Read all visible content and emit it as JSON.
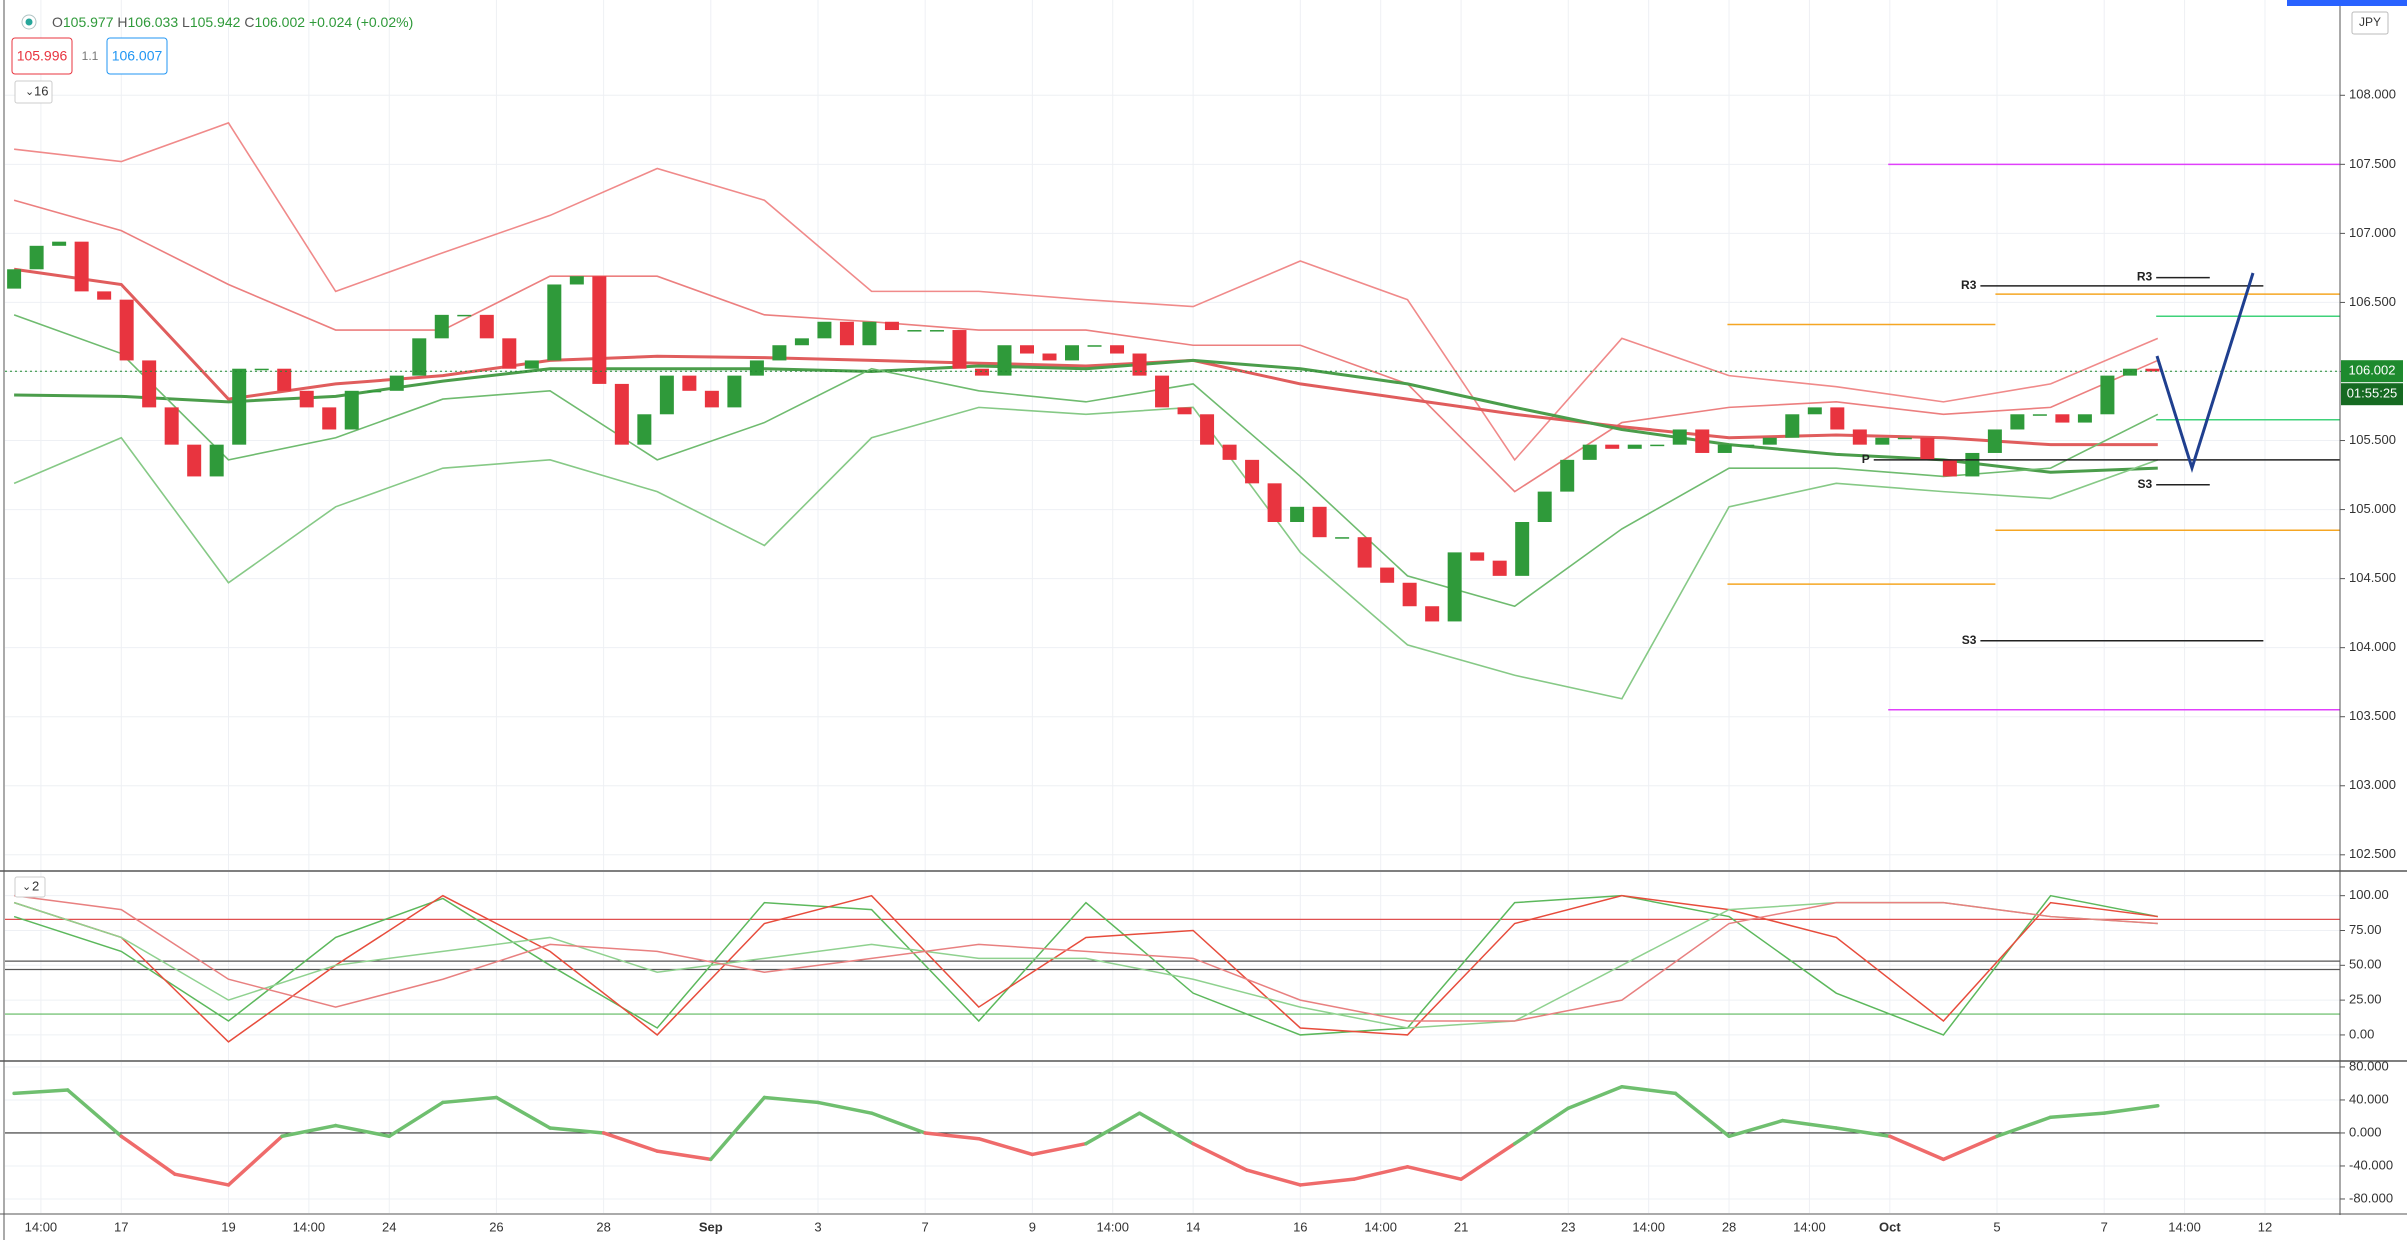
{
  "header": {
    "ohlc": [
      [
        "O",
        "105.977"
      ],
      [
        "H",
        "106.033"
      ],
      [
        "L",
        "105.942"
      ],
      [
        "C",
        "106.002"
      ]
    ],
    "change": "+0.024 (+0.02%)",
    "bid": "105.996",
    "spread": "1.1",
    "ask": "106.007",
    "main_toggle": "16",
    "osc_toggle": "2",
    "currency": "JPY"
  },
  "chart_data": [
    {
      "type": "candlestick",
      "xlim": [
        -2.17,
        41.4
      ],
      "xticks": [
        {
          "value": -1.5,
          "label": "14:00"
        },
        {
          "value": 0,
          "label": "17"
        },
        {
          "value": 2,
          "label": "19"
        },
        {
          "value": 3.5,
          "label": "14:00"
        },
        {
          "value": 5,
          "label": "24"
        },
        {
          "value": 7,
          "label": "26"
        },
        {
          "value": 9,
          "label": "28"
        },
        {
          "value": 11,
          "label": "Sep"
        },
        {
          "value": 13,
          "label": "3"
        },
        {
          "value": 15,
          "label": "7"
        },
        {
          "value": 17,
          "label": "9"
        },
        {
          "value": 18.5,
          "label": "14:00"
        },
        {
          "value": 20,
          "label": "14"
        },
        {
          "value": 22,
          "label": "16"
        },
        {
          "value": 23.5,
          "label": "14:00"
        },
        {
          "value": 25,
          "label": "21"
        },
        {
          "value": 27,
          "label": "23"
        },
        {
          "value": 28.5,
          "label": "14:00"
        },
        {
          "value": 30,
          "label": "28"
        },
        {
          "value": 31.5,
          "label": "14:00"
        },
        {
          "value": 33,
          "label": "Oct"
        },
        {
          "value": 35,
          "label": "5"
        },
        {
          "value": 37,
          "label": "7"
        },
        {
          "value": 38.5,
          "label": "14:00"
        },
        {
          "value": 40,
          "label": "12"
        }
      ],
      "ylim": [
        102.39,
        108.69
      ],
      "yticks": [
        {
          "value": 102.5,
          "label": "102.500"
        },
        {
          "value": 103,
          "label": "103.000"
        },
        {
          "value": 103.5,
          "label": "103.500"
        },
        {
          "value": 104,
          "label": "104.000"
        },
        {
          "value": 104.5,
          "label": "104.500"
        },
        {
          "value": 105,
          "label": "105.000"
        },
        {
          "value": 105.5,
          "label": "105.500"
        },
        {
          "value": 106,
          "label": "106.000"
        },
        {
          "value": 106.5,
          "label": "106.500"
        },
        {
          "value": 107,
          "label": "107.000"
        },
        {
          "value": 107.5,
          "label": "107.500"
        },
        {
          "value": 108,
          "label": "108.000"
        }
      ],
      "grid": true,
      "up_color": "#2f9a3a",
      "down_color": "#e8343f",
      "x": [
        -2,
        -1.58,
        -1.16,
        -0.74,
        -0.32,
        0.1,
        0.52,
        0.94,
        1.36,
        1.78,
        2.2,
        2.62,
        3.04,
        3.46,
        3.88,
        4.3,
        4.72,
        5.14,
        5.56,
        5.98,
        6.4,
        6.82,
        7.24,
        7.66,
        8.08,
        8.5,
        8.92,
        9.34,
        9.76,
        10.18,
        10.6,
        11.02,
        11.44,
        11.86,
        12.28,
        12.7,
        13.12,
        13.54,
        13.96,
        14.38,
        14.8,
        15.22,
        15.64,
        16.06,
        16.48,
        16.9,
        17.32,
        17.74,
        18.16,
        18.58,
        19,
        19.42,
        19.84,
        20.26,
        20.68,
        21.1,
        21.52,
        21.94,
        22.36,
        22.78,
        23.2,
        23.62,
        24.04,
        24.46,
        24.88,
        25.3,
        25.72,
        26.14,
        26.56,
        26.98,
        27.4,
        27.82,
        28.24,
        28.66,
        29.08,
        29.5,
        29.92,
        30.34,
        30.76,
        31.18,
        31.6,
        32.02,
        32.44,
        32.86,
        33.28,
        33.7,
        34.12,
        34.54,
        34.96,
        35.38,
        35.8,
        36.22,
        36.64,
        37.06,
        37.48,
        37.9
      ],
      "open": [
        106.6,
        106.74,
        106.91,
        106.94,
        106.58,
        106.52,
        106.08,
        105.74,
        105.47,
        105.24,
        105.47,
        106.02,
        106.02,
        105.86,
        105.74,
        105.58,
        105.86,
        105.86,
        105.97,
        106.24,
        106.41,
        106.41,
        106.24,
        106.02,
        106.08,
        106.63,
        106.69,
        105.91,
        105.47,
        105.69,
        105.97,
        105.86,
        105.74,
        105.97,
        106.08,
        106.19,
        106.24,
        106.36,
        106.19,
        106.36,
        106.3,
        106.3,
        106.3,
        106.02,
        105.97,
        106.19,
        106.13,
        106.08,
        106.19,
        106.19,
        106.13,
        105.97,
        105.74,
        105.69,
        105.47,
        105.36,
        105.19,
        104.91,
        105.02,
        104.8,
        104.8,
        104.58,
        104.47,
        104.3,
        104.19,
        104.69,
        104.63,
        104.52,
        104.91,
        105.13,
        105.36,
        105.47,
        105.44,
        105.47,
        105.47,
        105.58,
        105.41,
        105.47,
        105.47,
        105.52,
        105.69,
        105.74,
        105.58,
        105.47,
        105.52,
        105.52,
        105.36,
        105.24,
        105.41,
        105.58,
        105.69,
        105.69,
        105.63,
        105.69,
        105.97,
        106.02
      ],
      "close": [
        106.74,
        106.91,
        106.94,
        106.58,
        106.52,
        106.08,
        105.74,
        105.47,
        105.24,
        105.47,
        106.02,
        106.02,
        105.86,
        105.74,
        105.58,
        105.86,
        105.86,
        105.97,
        106.24,
        106.41,
        106.41,
        106.24,
        106.02,
        106.08,
        106.63,
        106.69,
        105.91,
        105.47,
        105.69,
        105.97,
        105.86,
        105.74,
        105.97,
        106.08,
        106.19,
        106.24,
        106.36,
        106.19,
        106.36,
        106.3,
        106.3,
        106.3,
        106.02,
        105.97,
        106.19,
        106.13,
        106.08,
        106.19,
        106.19,
        106.13,
        105.97,
        105.74,
        105.69,
        105.47,
        105.36,
        105.19,
        104.91,
        105.02,
        104.8,
        104.8,
        104.58,
        104.47,
        104.3,
        104.19,
        104.69,
        104.63,
        104.52,
        104.91,
        105.13,
        105.36,
        105.47,
        105.44,
        105.47,
        105.47,
        105.58,
        105.41,
        105.47,
        105.47,
        105.52,
        105.69,
        105.74,
        105.58,
        105.47,
        105.52,
        105.52,
        105.36,
        105.24,
        105.41,
        105.58,
        105.69,
        105.69,
        105.63,
        105.69,
        105.97,
        106.02,
        106.0
      ],
      "bands": {
        "x": [
          -2,
          0,
          2,
          4,
          6,
          8,
          10,
          12,
          14,
          16,
          18,
          20,
          22,
          24,
          26,
          28,
          30,
          32,
          34,
          36,
          38
        ],
        "series": [
          {
            "color": "#f08a8a",
            "width": 1.6,
            "values": [
              107.61,
              107.52,
              107.8,
              106.58,
              106.86,
              107.13,
              107.47,
              107.24,
              106.58,
              106.58,
              106.52,
              106.47,
              106.8,
              106.52,
              105.36,
              106.24,
              105.97,
              105.89,
              105.78,
              105.91,
              106.24
            ]
          },
          {
            "color": "#ec7f7f",
            "width": 1.6,
            "values": [
              107.24,
              107.02,
              106.63,
              106.3,
              106.3,
              106.69,
              106.69,
              106.41,
              106.36,
              106.3,
              106.3,
              106.19,
              106.19,
              105.91,
              105.13,
              105.63,
              105.74,
              105.78,
              105.69,
              105.74,
              106.08
            ]
          },
          {
            "color": "#e05d5d",
            "width": 3,
            "values": [
              106.74,
              106.63,
              105.8,
              105.91,
              105.97,
              106.08,
              106.11,
              106.1,
              106.08,
              106.06,
              106.04,
              106.08,
              105.91,
              105.8,
              105.69,
              105.6,
              105.52,
              105.54,
              105.52,
              105.47,
              105.47
            ]
          },
          {
            "color": "#4b9d4b",
            "width": 3,
            "values": [
              105.83,
              105.82,
              105.78,
              105.82,
              105.93,
              106.02,
              106.02,
              106.02,
              106.0,
              106.04,
              106.02,
              106.08,
              106.02,
              105.91,
              105.74,
              105.58,
              105.47,
              105.4,
              105.36,
              105.27,
              105.3
            ]
          },
          {
            "color": "#6fbb6f",
            "width": 1.6,
            "values": [
              106.41,
              106.13,
              105.36,
              105.52,
              105.8,
              105.86,
              105.36,
              105.63,
              106.02,
              105.86,
              105.78,
              105.91,
              105.24,
              104.52,
              104.3,
              104.86,
              105.3,
              105.3,
              105.24,
              105.3,
              105.69
            ]
          },
          {
            "color": "#86c986",
            "width": 1.6,
            "values": [
              105.19,
              105.52,
              104.47,
              105.02,
              105.3,
              105.36,
              105.13,
              104.74,
              105.52,
              105.74,
              105.69,
              105.74,
              104.69,
              104.02,
              103.8,
              103.63,
              105.02,
              105.19,
              105.13,
              105.08,
              105.36
            ]
          }
        ]
      },
      "levels": [
        {
          "price": 107.5,
          "x": [
            32.97,
            41.4
          ],
          "color": "#e040fb"
        },
        {
          "price": 103.55,
          "x": [
            32.97,
            41.4
          ],
          "color": "#e040fb"
        },
        {
          "price": 106.34,
          "x": [
            29.97,
            34.97
          ],
          "color": "#f5a623"
        },
        {
          "price": 104.46,
          "x": [
            29.97,
            34.97
          ],
          "color": "#f5a623"
        },
        {
          "price": 106.56,
          "x": [
            34.97,
            41.4
          ],
          "color": "#f5a623"
        },
        {
          "price": 104.85,
          "x": [
            34.97,
            41.4
          ],
          "color": "#f5a623"
        },
        {
          "price": 106.4,
          "x": [
            37.97,
            41.4
          ],
          "color": "#3fd27a"
        },
        {
          "price": 105.65,
          "x": [
            37.97,
            41.4
          ],
          "color": "#3fd27a"
        },
        {
          "price": 106.62,
          "x": [
            34.69,
            39.97
          ],
          "color": "#222222",
          "label": "R3"
        },
        {
          "price": 104.05,
          "x": [
            34.69,
            39.97
          ],
          "color": "#222222",
          "label": "S3"
        },
        {
          "price": 106.68,
          "x": [
            37.97,
            38.97
          ],
          "color": "#222222",
          "label": "R3"
        },
        {
          "price": 105.18,
          "x": [
            37.97,
            38.97
          ],
          "color": "#222222",
          "label": "S3"
        },
        {
          "price": 105.36,
          "x": [
            32.7,
            41.4
          ],
          "color": "#222222",
          "label": "P"
        }
      ],
      "last_price": 106.002,
      "countdown": "01:55:25",
      "last_color": "#1e8a2e"
    },
    {
      "type": "line",
      "ylim": [
        -18,
        117
      ],
      "yticks": [
        {
          "value": 0,
          "label": "0.00"
        },
        {
          "value": 25,
          "label": "25.00"
        },
        {
          "value": 50,
          "label": "50.00"
        },
        {
          "value": 75,
          "label": "75.00"
        },
        {
          "value": 100,
          "label": "100.00"
        }
      ],
      "grid": true,
      "x": [
        -2,
        0,
        2,
        4,
        6,
        8,
        10,
        12,
        14,
        16,
        18,
        20,
        22,
        24,
        26,
        28,
        30,
        32,
        34,
        36,
        38
      ],
      "series": [
        {
          "color": "#5cb85c",
          "values": [
            85,
            60,
            10,
            70,
            98,
            50,
            5,
            95,
            90,
            10,
            95,
            30,
            0,
            5,
            95,
            100,
            85,
            30,
            0,
            100,
            85
          ]
        },
        {
          "color": "#e74c3c",
          "values": [
            95,
            70,
            -5,
            50,
            100,
            60,
            0,
            80,
            100,
            20,
            70,
            75,
            5,
            0,
            80,
            100,
            90,
            70,
            10,
            95,
            85
          ]
        },
        {
          "color": "#8fd18f",
          "values": [
            95,
            70,
            25,
            50,
            60,
            70,
            45,
            55,
            65,
            55,
            55,
            40,
            20,
            5,
            10,
            50,
            90,
            95,
            95,
            85,
            80
          ]
        },
        {
          "color": "#e88080",
          "values": [
            100,
            90,
            40,
            20,
            40,
            65,
            60,
            45,
            55,
            65,
            60,
            55,
            25,
            10,
            10,
            25,
            80,
            95,
            95,
            85,
            80
          ]
        }
      ],
      "hlines": [
        {
          "value": 83,
          "color": "#e05050"
        },
        {
          "value": 53,
          "color": "#555555"
        },
        {
          "value": 47,
          "color": "#555555"
        },
        {
          "value": 15,
          "color": "#5cb85c"
        }
      ]
    },
    {
      "type": "line",
      "ylim": [
        -97,
        86
      ],
      "yticks": [
        {
          "value": -80,
          "label": "-80.000"
        },
        {
          "value": -40,
          "label": "-40.000"
        },
        {
          "value": 0,
          "label": "0.000"
        },
        {
          "value": 40,
          "label": "40.000"
        },
        {
          "value": 80,
          "label": "80.000"
        }
      ],
      "grid": true,
      "x": [
        -2,
        -1,
        0,
        1,
        2,
        3,
        4,
        5,
        6,
        7,
        8,
        9,
        10,
        11,
        12,
        13,
        14,
        15,
        16,
        17,
        18,
        19,
        20,
        21,
        22,
        23,
        24,
        25,
        26,
        27,
        28,
        29,
        30,
        31,
        32,
        33,
        34,
        35,
        36,
        37,
        38
      ],
      "values": [
        48,
        52,
        -4,
        -50,
        -63,
        -4,
        9,
        -4,
        37,
        43,
        6,
        0,
        -22,
        -32,
        43,
        37,
        24,
        0,
        -7,
        -26,
        -13,
        24,
        -13,
        -45,
        -63,
        -56,
        -41,
        -56,
        -13,
        30,
        56,
        48,
        -4,
        15,
        6,
        -4,
        -32,
        -4,
        19,
        24,
        33
      ],
      "positive_color": "#6fbf6f",
      "negative_color": "#ef6b6b",
      "hlines": [
        {
          "value": 0,
          "color": "#333333"
        }
      ]
    }
  ]
}
